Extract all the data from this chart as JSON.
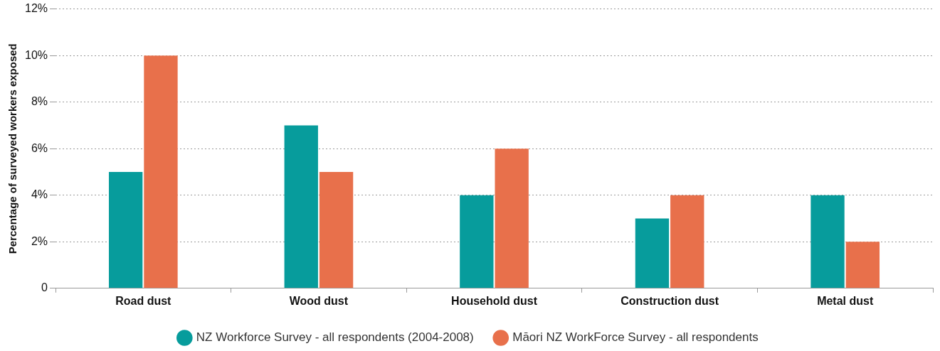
{
  "chart_data": {
    "type": "bar",
    "ylabel": "Percentage of surveyed workers exposed",
    "categories": [
      "Road dust",
      "Wood dust",
      "Household dust",
      "Construction dust",
      "Metal dust"
    ],
    "series": [
      {
        "name": "NZ Workforce Survey - all respondents (2004-2008)",
        "color": "#079c9c",
        "values": [
          5,
          7,
          4,
          3,
          4
        ]
      },
      {
        "name": "Māori NZ WorkForce Survey - all respondents",
        "color": "#e8704b",
        "values": [
          10,
          5,
          6,
          4,
          2
        ]
      }
    ],
    "ylim": [
      0,
      12
    ],
    "yticks": [
      0,
      {
        "value": 2,
        "label": "2%"
      },
      {
        "value": 4,
        "label": "4%"
      },
      {
        "value": 6,
        "label": "6%"
      },
      {
        "value": 8,
        "label": "8%"
      },
      {
        "value": 10,
        "label": "10%"
      },
      {
        "value": 12,
        "label": "12%"
      }
    ],
    "grid": "y",
    "legend": "bottom"
  }
}
